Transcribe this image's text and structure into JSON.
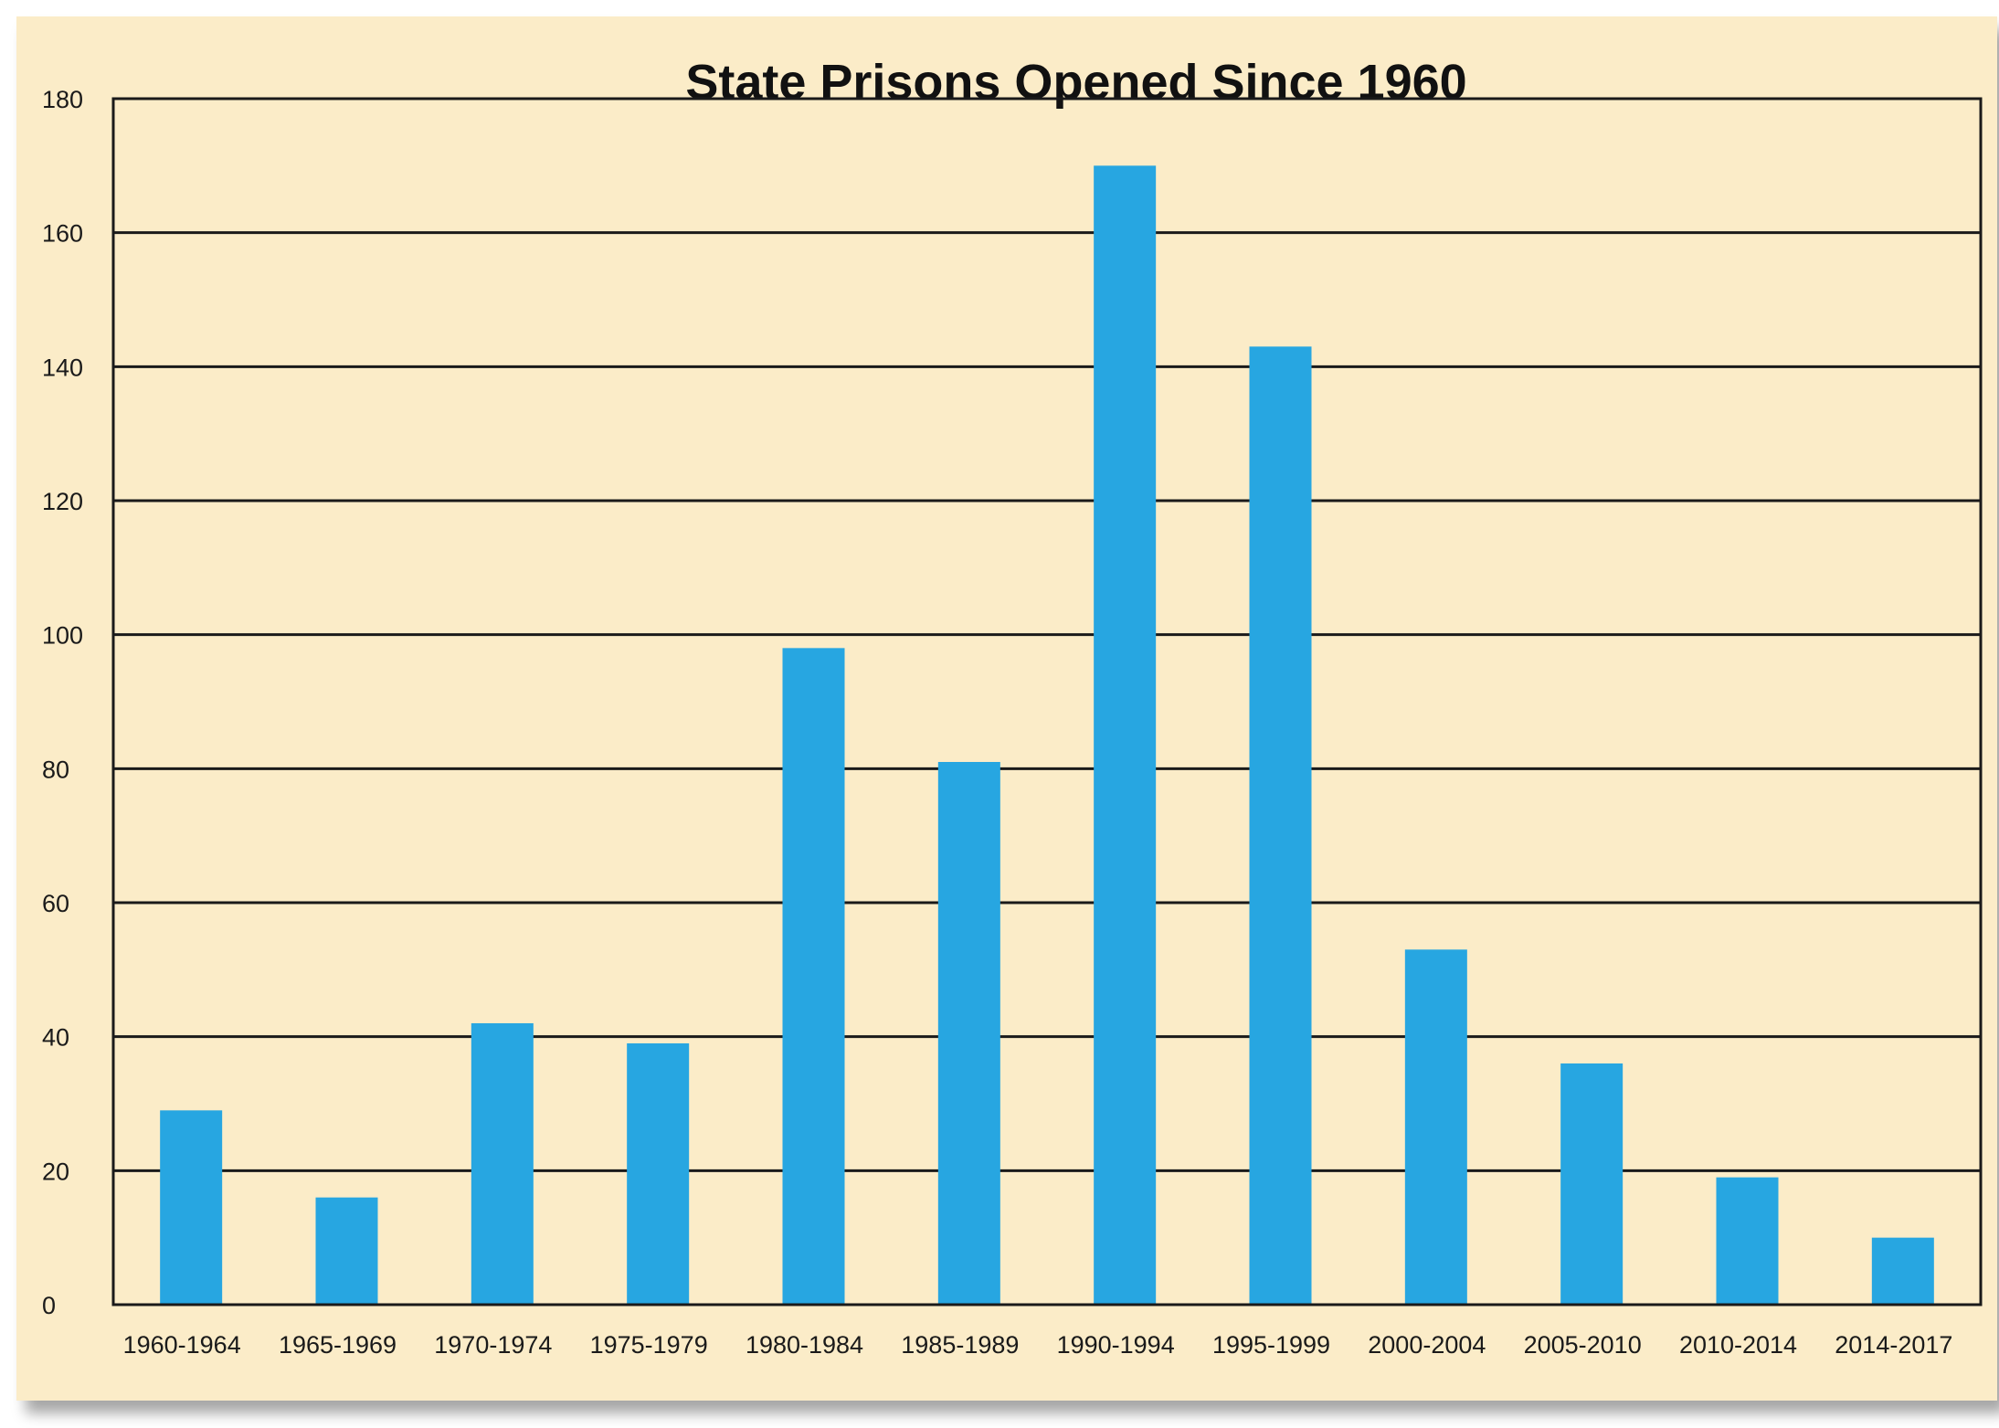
{
  "chart_data": {
    "type": "bar",
    "title": "State Prisons Opened Since 1960",
    "xlabel": "",
    "ylabel": "",
    "categories": [
      "1960-1964",
      "1965-1969",
      "1970-1974",
      "1975-1979",
      "1980-1984",
      "1985-1989",
      "1990-1994",
      "1995-1999",
      "2000-2004",
      "2005-2010",
      "2010-2014",
      "2014-2017"
    ],
    "values": [
      29,
      16,
      42,
      39,
      98,
      81,
      170,
      143,
      53,
      36,
      19,
      10
    ],
    "ylim": [
      0,
      180
    ],
    "yticks": [
      0,
      20,
      40,
      60,
      80,
      100,
      120,
      140,
      160,
      180
    ],
    "grid": true,
    "colors": {
      "background": "#fbecc8",
      "bar": "#27a6e1",
      "grid": "#1a1a1a"
    }
  }
}
